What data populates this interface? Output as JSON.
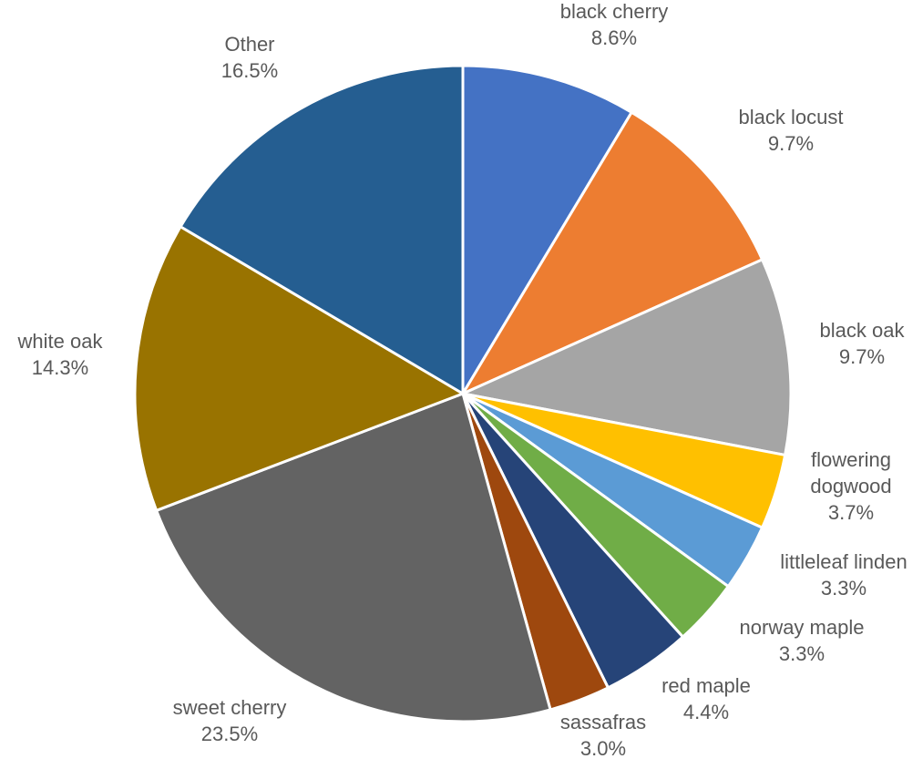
{
  "chart_data": {
    "type": "pie",
    "title": "",
    "slices": [
      {
        "label_lines": [
          "black cherry"
        ],
        "percent_label": "8.6%",
        "value": 8.6,
        "color": "#4472C4"
      },
      {
        "label_lines": [
          "black locust"
        ],
        "percent_label": "9.7%",
        "value": 9.7,
        "color": "#ED7D31"
      },
      {
        "label_lines": [
          "black oak"
        ],
        "percent_label": "9.7%",
        "value": 9.7,
        "color": "#A5A5A5"
      },
      {
        "label_lines": [
          "flowering",
          "dogwood"
        ],
        "percent_label": "3.7%",
        "value": 3.7,
        "color": "#FFC000"
      },
      {
        "label_lines": [
          "littleleaf linden"
        ],
        "percent_label": "3.3%",
        "value": 3.3,
        "color": "#5B9BD5"
      },
      {
        "label_lines": [
          "norway maple"
        ],
        "percent_label": "3.3%",
        "value": 3.3,
        "color": "#70AD47"
      },
      {
        "label_lines": [
          "red maple"
        ],
        "percent_label": "4.4%",
        "value": 4.4,
        "color": "#264478"
      },
      {
        "label_lines": [
          "sassafras"
        ],
        "percent_label": "3.0%",
        "value": 3.0,
        "color": "#9E480E"
      },
      {
        "label_lines": [
          "sweet cherry"
        ],
        "percent_label": "23.5%",
        "value": 23.5,
        "color": "#636363"
      },
      {
        "label_lines": [
          "white oak"
        ],
        "percent_label": "14.3%",
        "value": 14.3,
        "color": "#997300"
      },
      {
        "label_lines": [
          "Other"
        ],
        "percent_label": "16.5%",
        "value": 16.5,
        "color": "#255E91"
      }
    ]
  }
}
